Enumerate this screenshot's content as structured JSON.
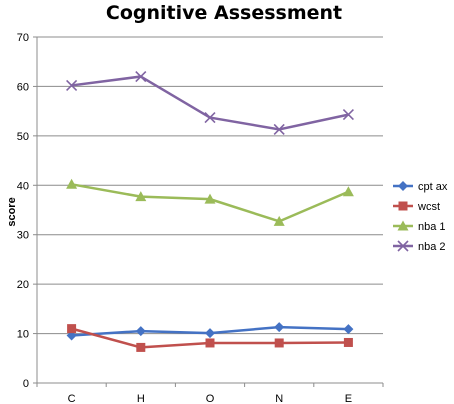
{
  "chart_data": {
    "type": "line",
    "title": "Cognitive Assessment",
    "xlabel": "",
    "ylabel": "score",
    "categories": [
      "C",
      "H",
      "O",
      "N",
      "E"
    ],
    "ylim": [
      0,
      70
    ],
    "yticks": [
      "0",
      "10",
      "20",
      "30",
      "40",
      "50",
      "60",
      "70"
    ],
    "grid": true,
    "legend_position": "right",
    "series": [
      {
        "name": "cpt ax",
        "values": [
          9.6,
          10.5,
          10.1,
          11.3,
          10.9
        ],
        "color": "#4472C4",
        "marker": "diamond"
      },
      {
        "name": "wcst",
        "values": [
          11.0,
          7.2,
          8.1,
          8.1,
          8.2
        ],
        "color": "#C0504D",
        "marker": "square"
      },
      {
        "name": "nba 1",
        "values": [
          40.2,
          37.7,
          37.2,
          32.7,
          38.7
        ],
        "color": "#9BBB59",
        "marker": "triangle"
      },
      {
        "name": "nba 2",
        "values": [
          60.2,
          62.0,
          53.7,
          51.3,
          54.3
        ],
        "color": "#8064A2",
        "marker": "x"
      }
    ]
  }
}
